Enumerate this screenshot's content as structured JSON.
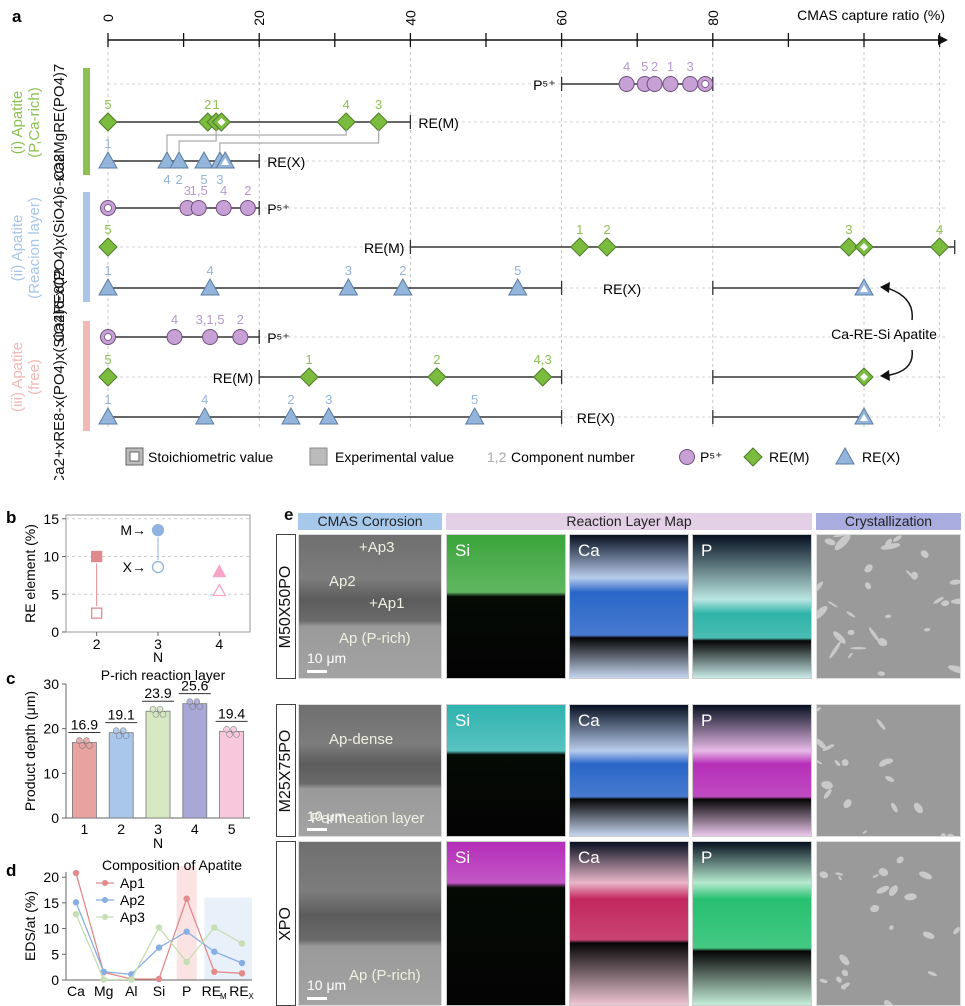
{
  "chart_data": [
    {
      "panel": "a",
      "type": "scatter",
      "title": "",
      "xlabel": "CMAS capture ratio (%)",
      "x_ticks": [
        0,
        20,
        40,
        60,
        80
      ],
      "xlim": [
        0,
        120
      ],
      "grid": true,
      "groups": [
        {
          "name": "(i) Apatite (P,Ca-rich)",
          "formula": "Ca8MgRE(PO4)7",
          "color": "#a6d26b",
          "rows": [
            {
              "ion": "P5+",
              "label": "P⁵⁺",
              "range": [
                [
                  60,
                  80
                ]
              ],
              "stoichiometric": 79,
              "points": [
                {
                  "n": "4",
                  "x": 68.6
                },
                {
                  "n": "5",
                  "x": 71.0
                },
                {
                  "n": "2",
                  "x": 72.3
                },
                {
                  "n": "1",
                  "x": 74.4
                },
                {
                  "n": "3",
                  "x": 77.0
                }
              ]
            },
            {
              "ion": "RE(M)",
              "label": "RE(M)",
              "range": [
                [
                  0,
                  40
                ]
              ],
              "stoichiometric": 15,
              "points": [
                {
                  "n": "5",
                  "x": 0
                },
                {
                  "n": "2",
                  "x": 13.2
                },
                {
                  "n": "1",
                  "x": 14.3
                },
                {
                  "n": "4",
                  "x": 31.5
                },
                {
                  "n": "3",
                  "x": 35.8
                }
              ]
            },
            {
              "ion": "RE(X)",
              "label": "RE(X)",
              "range": [
                [
                  0,
                  20
                ]
              ],
              "stoichiometric": 15.5,
              "points": [
                {
                  "n": "1",
                  "x": 0
                },
                {
                  "n": "4",
                  "x": 7.8
                },
                {
                  "n": "2",
                  "x": 9.4
                },
                {
                  "n": "5",
                  "x": 12.7
                },
                {
                  "n": "3",
                  "x": 14.8
                }
              ]
            }
          ]
        },
        {
          "name": "(ii) Apatite (Reacion layer)",
          "formula": "Ca2RE8(PO4)x(SiO4)6-xO2",
          "color": "#a9c6e8",
          "rows": [
            {
              "ion": "P5+",
              "label": "P⁵⁺",
              "range": [
                [
                  0,
                  20
                ]
              ],
              "stoichiometric": 0,
              "points": [
                {
                  "n": "3",
                  "x": 10.5
                },
                {
                  "n": "1,5",
                  "x": 12.0
                },
                {
                  "n": "4",
                  "x": 15.3
                },
                {
                  "n": "2",
                  "x": 18.5
                }
              ]
            },
            {
              "ion": "RE(M)",
              "label": "RE(M)",
              "range": [
                [
                  40,
                  112
                ]
              ],
              "stoichiometric": 100,
              "points": [
                {
                  "n": "5",
                  "x": 0
                },
                {
                  "n": "1",
                  "x": 62.4
                },
                {
                  "n": "2",
                  "x": 66.0
                },
                {
                  "n": "3",
                  "x": 98.0
                },
                {
                  "n": "4",
                  "x": 110.0
                }
              ]
            },
            {
              "ion": "RE(X)",
              "label": "RE(X)",
              "range": [
                [
                  0,
                  60
                ],
                [
                  80,
                  100
                ]
              ],
              "stoichiometric": 100,
              "points": [
                {
                  "n": "1",
                  "x": 0
                },
                {
                  "n": "4",
                  "x": 13.5
                },
                {
                  "n": "3",
                  "x": 31.8
                },
                {
                  "n": "2",
                  "x": 39.0
                },
                {
                  "n": "5",
                  "x": 54.2
                }
              ]
            }
          ]
        },
        {
          "name": "(iii) Apatite (free)",
          "formula": "Ca2+xRE8-x(PO4)x(SiO4)6-xO2",
          "color": "#f1b8b5",
          "rows": [
            {
              "ion": "P5+",
              "label": "P⁵⁺",
              "range": [
                [
                  0,
                  20
                ]
              ],
              "stoichiometric": 0,
              "points": [
                {
                  "n": "4",
                  "x": 8.8
                },
                {
                  "n": "3,1,5",
                  "x": 13.5
                },
                {
                  "n": "2",
                  "x": 17.5
                }
              ]
            },
            {
              "ion": "RE(M)",
              "label": "RE(M)",
              "range": [
                [
                  20,
                  60
                ],
                [
                  80,
                  100
                ]
              ],
              "stoichiometric": 100,
              "points": [
                {
                  "n": "5",
                  "x": 0
                },
                {
                  "n": "1",
                  "x": 26.6
                },
                {
                  "n": "2",
                  "x": 43.5
                },
                {
                  "n": "4,3",
                  "x": 57.5
                }
              ]
            },
            {
              "ion": "RE(X)",
              "label": "RE(X)",
              "range": [
                [
                  0,
                  60
                ],
                [
                  80,
                  100
                ]
              ],
              "stoichiometric": 100,
              "points": [
                {
                  "n": "1",
                  "x": 0
                },
                {
                  "n": "4",
                  "x": 12.8
                },
                {
                  "n": "2",
                  "x": 24.2
                },
                {
                  "n": "3",
                  "x": 29.2
                },
                {
                  "n": "5",
                  "x": 48.5
                }
              ]
            }
          ]
        }
      ],
      "annotation": "Ca-RE-Si Apatite",
      "legend": {
        "placement": "bottom",
        "items": [
          {
            "marker": "stoichiometric",
            "label": "Stoichiometric value"
          },
          {
            "marker": "experimental",
            "label": "Experimental value"
          },
          {
            "marker": "component-number",
            "prefix": "1,2",
            "label": "Component number"
          },
          {
            "marker": "circle",
            "label": "P⁵⁺",
            "color": "#c39bd3"
          },
          {
            "marker": "diamond",
            "label": "RE(M)",
            "color": "#7ab648"
          },
          {
            "marker": "triangle",
            "label": "RE(X)",
            "color": "#8fb2d8"
          }
        ]
      },
      "colors": {
        "P5+": "#c7a0d6",
        "RE(M)": "#7bbb3e",
        "RE(X)": "#93b5dc",
        "num_P": "#b79ad1",
        "num_M": "#8cc152",
        "num_X": "#93b5dc"
      }
    },
    {
      "panel": "b",
      "type": "scatter",
      "xlabel": "N",
      "ylabel": "RE element (%)",
      "x_ticks": [
        2,
        3,
        4
      ],
      "y_ticks": [
        0,
        5,
        10,
        15
      ],
      "ylim": [
        0,
        15.5
      ],
      "grid": true,
      "series": [
        {
          "name": "M",
          "x": [
            2,
            3,
            4
          ],
          "y": [
            10.0,
            13.5,
            8.0
          ],
          "filled": true
        },
        {
          "name": "X",
          "x": [
            2,
            3,
            4
          ],
          "y": [
            2.5,
            8.6,
            5.5
          ],
          "filled": false
        }
      ],
      "marker_by_x": {
        "2": "square",
        "3": "circle",
        "4": "triangle"
      },
      "color_by_x": {
        "2": "#e08a8f",
        "3": "#8fb2e0",
        "4": "#f6a5c9"
      },
      "annotations": [
        "M→",
        "X→"
      ]
    },
    {
      "panel": "c",
      "type": "bar",
      "title": "P-rich reaction layer",
      "xlabel": "N",
      "ylabel": "Product depth (μm)",
      "categories": [
        "1",
        "2",
        "3",
        "4",
        "5"
      ],
      "values": [
        16.9,
        19.1,
        23.9,
        25.6,
        19.4
      ],
      "data_labels": [
        "16.9",
        "19.1",
        "23.9",
        "25.6",
        "19.4"
      ],
      "ylim": [
        0,
        30
      ],
      "y_ticks": [
        0,
        10,
        20,
        30
      ],
      "bar_colors": [
        "#e8a3a0",
        "#a9c6eb",
        "#d6e8c2",
        "#a8a8d8",
        "#f7c8dc"
      ]
    },
    {
      "panel": "d",
      "type": "line",
      "title": "Composition of Apatite",
      "ylabel": "EDS/at (%)",
      "categories": [
        "Ca",
        "Mg",
        "Al",
        "Si",
        "P",
        "RE_M",
        "RE_X"
      ],
      "category_labels": [
        "Ca",
        "Mg",
        "Al",
        "Si",
        "P",
        "RE",
        "RE"
      ],
      "category_subs": [
        "",
        "",
        "",
        "",
        "",
        "M",
        "X"
      ],
      "ylim": [
        0,
        21
      ],
      "y_ticks": [
        0,
        5,
        10,
        15,
        20
      ],
      "series": [
        {
          "name": "Ap1",
          "color": "#e38a8a",
          "values": [
            20.8,
            1.5,
            0.2,
            0.2,
            15.8,
            1.6,
            1.3
          ]
        },
        {
          "name": "Ap2",
          "color": "#87aee3",
          "values": [
            15.1,
            1.6,
            1.1,
            6.3,
            9.4,
            5.5,
            3.3
          ]
        },
        {
          "name": "Ap3",
          "color": "#c5dfb2",
          "values": [
            12.8,
            0.1,
            0.1,
            10.2,
            3.5,
            10.2,
            7.1
          ]
        }
      ],
      "highlight_bands": [
        {
          "category": "P",
          "color": "#fbe3e3"
        },
        {
          "categories": [
            "RE_M",
            "RE_X"
          ],
          "color": "#e8f0fa"
        }
      ]
    }
  ],
  "panel_labels": {
    "a": "a",
    "b": "b",
    "c": "c",
    "d": "d",
    "e": "e"
  },
  "panel_e": {
    "headers": [
      {
        "label": "CMAS Corrosion",
        "color": "#a6c8ea"
      },
      {
        "label": "Reaction Layer Map",
        "color": "#e3cfe6"
      },
      {
        "label": "Crystallization",
        "color": "#a9acdf"
      }
    ],
    "rows": [
      {
        "name": "M50X50PO",
        "sem_annotations": [
          "+Ap3",
          "Ap2",
          "+Ap1",
          "Ap (P-rich)"
        ],
        "scale": "10 μm",
        "maps": [
          {
            "element": "Si",
            "color": "#3aa53a"
          },
          {
            "element": "Ca",
            "color": "#2a66c8"
          },
          {
            "element": "P",
            "color": "#2fb3a8"
          }
        ]
      },
      {
        "name": "M25X75PO",
        "sem_annotations": [
          "Ap-dense",
          "Permeation layer"
        ],
        "scale": "10 μm",
        "maps": [
          {
            "element": "Si",
            "color": "#2fb3b0"
          },
          {
            "element": "Ca",
            "color": "#2a66c8"
          },
          {
            "element": "P",
            "color": "#b62fb8"
          }
        ]
      },
      {
        "name": "XPO",
        "sem_annotations": [
          "Ap (P-rich)"
        ],
        "scale": "10 μm",
        "maps": [
          {
            "element": "Si",
            "color": "#b42db8"
          },
          {
            "element": "Ca",
            "color": "#c2275e"
          },
          {
            "element": "P",
            "color": "#27c070"
          }
        ]
      }
    ]
  }
}
